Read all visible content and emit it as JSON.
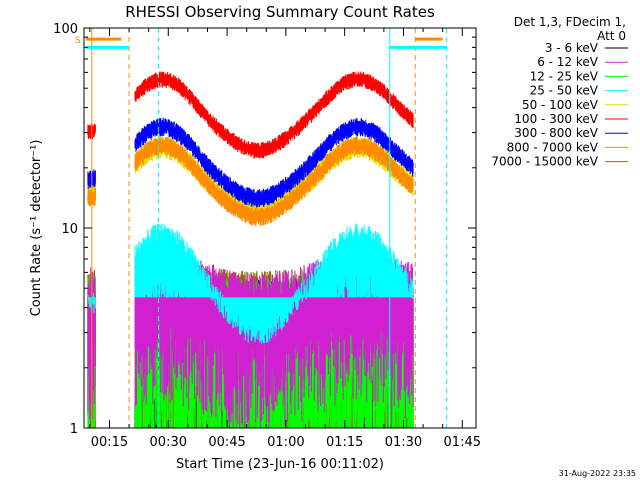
{
  "chart_data": {
    "type": "line",
    "title": "RHESSI Observing Summary Count Rates",
    "xlabel": "Start Time (23-Jun-16 00:11:02)",
    "ylabel": "Count Rate (s⁻¹ detector⁻¹)",
    "yscale": "log",
    "ylim": [
      1,
      100
    ],
    "xlim_minutes": [
      8.5,
      108.5
    ],
    "x_ticks": [
      {
        "minutes": 15,
        "label": "00:15"
      },
      {
        "minutes": 30,
        "label": "00:30"
      },
      {
        "minutes": 45,
        "label": "00:45"
      },
      {
        "minutes": 60,
        "label": "01:00"
      },
      {
        "minutes": 75,
        "label": "01:15"
      },
      {
        "minutes": 90,
        "label": "01:30"
      },
      {
        "minutes": 105,
        "label": "01:45"
      }
    ],
    "y_ticks": [
      {
        "value": 1,
        "label": "1"
      },
      {
        "value": 10,
        "label": "10"
      },
      {
        "value": 100,
        "label": "100"
      }
    ],
    "legend_header": [
      "Det 1,3, FDecim 1,",
      "Att 0"
    ],
    "legend_position": "top-right, outside plot",
    "series": [
      {
        "name": "3 - 6 keV",
        "color": "#000000",
        "base": 2.5,
        "amp": 0.0,
        "noise": 0.9,
        "floor": 1
      },
      {
        "name": "6 - 12 keV",
        "color": "#d020d0",
        "base": 4.2,
        "amp": 0.15,
        "noise": 0.55,
        "floor": 1
      },
      {
        "name": "12 - 25 keV",
        "color": "#00ff00",
        "base": 3.0,
        "amp": 0.1,
        "noise": 0.8,
        "floor": 1
      },
      {
        "name": "25 - 50 keV",
        "color": "#00ffff",
        "base": 5.5,
        "amp": 0.45,
        "noise": 0.35,
        "floor": 4.5
      },
      {
        "name": "50 - 100 keV",
        "color": "#e0e000",
        "base": 21,
        "amp": 0.32,
        "noise": 0.1,
        "floor": 10
      },
      {
        "name": "100 - 300 keV",
        "color": "#ff0000",
        "base": 45,
        "amp": 0.35,
        "noise": 0.07,
        "floor": 20
      },
      {
        "name": "300 - 800 keV",
        "color": "#0000ff",
        "base": 26,
        "amp": 0.35,
        "noise": 0.08,
        "floor": 12
      },
      {
        "name": "800 - 7000 keV",
        "color": "#ff8c00",
        "base": 21,
        "amp": 0.35,
        "noise": 0.08,
        "floor": 10
      },
      {
        "name": "7000 - 15000 keV",
        "color": "#8b7500",
        "base": 3.2,
        "amp": 0.05,
        "noise": 0.75,
        "floor": 1
      }
    ],
    "data_intervals_minutes": [
      [
        9.5,
        11.5
      ],
      [
        21.5,
        92.5
      ]
    ],
    "peak_times_minutes": [
      28.5,
      78.5
    ],
    "vlines": [
      {
        "minutes": 10.5,
        "color": "#ff8c00",
        "style": "solid"
      },
      {
        "minutes": 20.0,
        "color": "#ff8c00",
        "style": "dashed"
      },
      {
        "minutes": 27.5,
        "color": "#00ffff",
        "style": "dashed"
      },
      {
        "minutes": 86.5,
        "color": "#00ffff",
        "style": "solid"
      },
      {
        "minutes": 93.0,
        "color": "#ff8c00",
        "style": "dashed"
      },
      {
        "minutes": 101.0,
        "color": "#00ffff",
        "style": "dashed"
      }
    ],
    "saa_bars": [
      {
        "start": 9.0,
        "end": 20.0,
        "color": "#00ffff",
        "level": 80
      },
      {
        "start": 9.0,
        "end": 18.0,
        "color": "#ff8c00",
        "level": 88
      },
      {
        "start": 86.5,
        "end": 101.0,
        "color": "#00ffff",
        "level": 80
      },
      {
        "start": 93.0,
        "end": 100.0,
        "color": "#ff8c00",
        "level": 88
      }
    ],
    "saa_label": "S",
    "footer_date": "31-Aug-2022 23:35"
  }
}
